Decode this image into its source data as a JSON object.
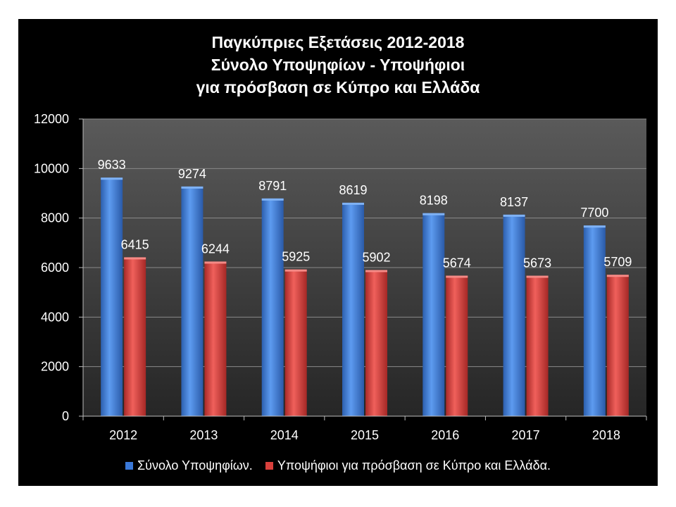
{
  "chart_data": {
    "type": "bar",
    "title_lines": [
      "Παγκύπριες Εξετάσεις 2012-2018",
      "Σύνολο Υποψηφίων - Υποψήφιοι",
      "για πρόσβαση σε Κύπρο και Ελλάδα"
    ],
    "categories": [
      "2012",
      "2013",
      "2014",
      "2015",
      "2016",
      "2017",
      "2018"
    ],
    "series": [
      {
        "name": "Σύνολο Υποψηφίων.",
        "values": [
          9633,
          9274,
          8791,
          8619,
          8198,
          8137,
          7700
        ],
        "color": "#3a78d8"
      },
      {
        "name": "Υποψήφιοι για πρόσβαση σε Κύπρο και Ελλάδα.",
        "values": [
          6415,
          6244,
          5925,
          5902,
          5674,
          5673,
          5709
        ],
        "color": "#d8403c"
      }
    ],
    "ylim": [
      0,
      12000
    ],
    "yticks": [
      0,
      2000,
      4000,
      6000,
      8000,
      10000,
      12000
    ],
    "grid": true,
    "legend_position": "bottom",
    "data_labels": true
  }
}
